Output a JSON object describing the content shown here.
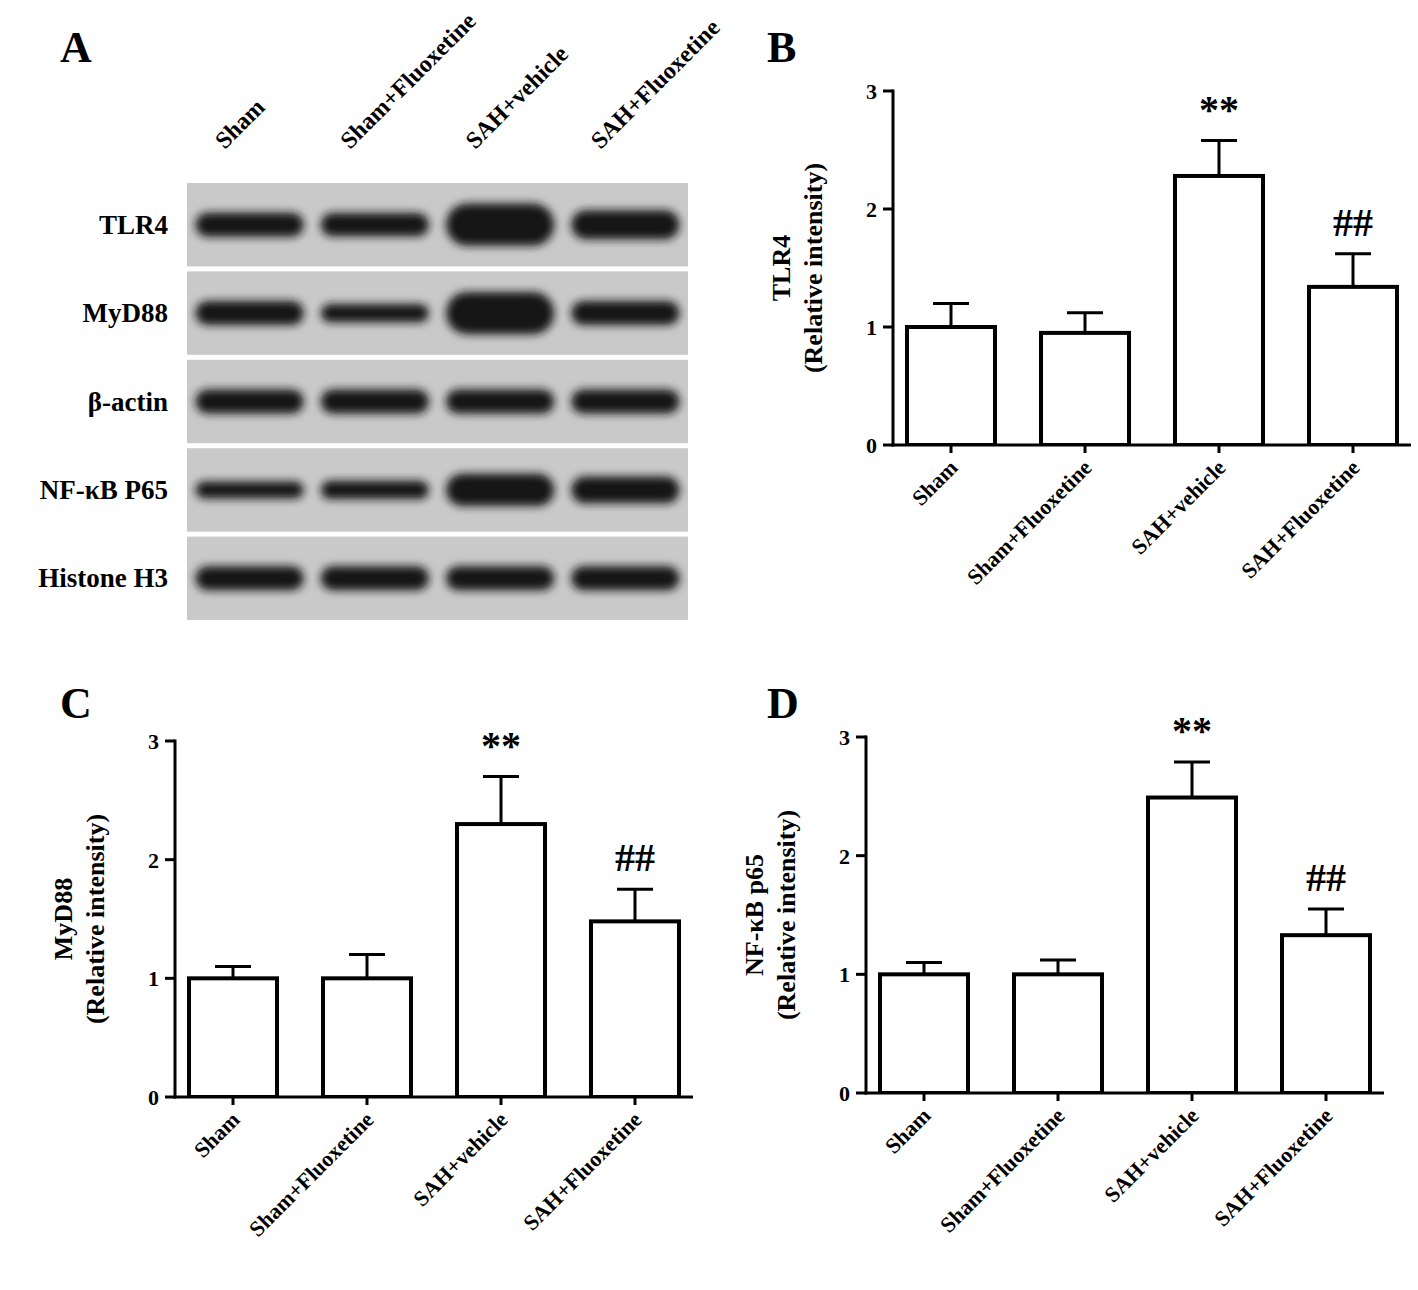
{
  "blot": {
    "panel": "A",
    "lanes": [
      "Sham",
      "Sham+Fluoxetine",
      "SAH+vehicle",
      "SAH+Fluoxetine"
    ],
    "rows": [
      {
        "label": "TLR4",
        "intensity": [
          1.0,
          0.95,
          2.3,
          1.35
        ]
      },
      {
        "label": "MyD88",
        "intensity": [
          1.0,
          0.6,
          2.3,
          1.0
        ]
      },
      {
        "label": "β-actin",
        "intensity": [
          1.0,
          1.0,
          1.0,
          1.0
        ]
      },
      {
        "label": "NF-κB P65",
        "intensity": [
          0.5,
          0.6,
          1.6,
          1.2
        ]
      },
      {
        "label": "Histone H3",
        "intensity": [
          1.0,
          1.0,
          1.0,
          1.0
        ]
      }
    ]
  },
  "chart_data": [
    {
      "type": "bar",
      "title": "B",
      "y_label": "TLR4\n(Relative intensity)",
      "categories": [
        "Sham",
        "Sham+Fluoxetine",
        "SAH+vehicle",
        "SAH+Fluoxetine"
      ],
      "values": [
        1.0,
        0.95,
        2.28,
        1.34
      ],
      "errors": [
        0.2,
        0.17,
        0.3,
        0.28
      ],
      "annotations": [
        null,
        null,
        "**",
        "##"
      ],
      "color": "#ffffff",
      "ylim": [
        0,
        3
      ],
      "yticks": [
        0,
        1,
        2,
        3
      ],
      "grid": false
    },
    {
      "type": "bar",
      "title": "C",
      "y_label": "MyD88\n(Relative intensity)",
      "categories": [
        "Sham",
        "Sham+Fluoxetine",
        "SAH+vehicle",
        "SAH+Fluoxetine"
      ],
      "values": [
        1.0,
        1.0,
        2.3,
        1.48
      ],
      "errors": [
        0.1,
        0.2,
        0.4,
        0.27
      ],
      "annotations": [
        null,
        null,
        "**",
        "##"
      ],
      "color": "#ffffff",
      "ylim": [
        0,
        3
      ],
      "yticks": [
        0,
        1,
        2,
        3
      ],
      "grid": false
    },
    {
      "type": "bar",
      "title": "D",
      "y_label": "NF-κB p65\n(Relative intensity)",
      "categories": [
        "Sham",
        "Sham+Fluoxetine",
        "SAH+vehicle",
        "SAH+Fluoxetine"
      ],
      "values": [
        1.0,
        1.0,
        2.49,
        1.33
      ],
      "errors": [
        0.1,
        0.12,
        0.3,
        0.22
      ],
      "annotations": [
        null,
        null,
        "**",
        "##"
      ],
      "color": "#ffffff",
      "ylim": [
        0,
        3
      ],
      "yticks": [
        0,
        1,
        2,
        3
      ],
      "grid": false
    }
  ]
}
